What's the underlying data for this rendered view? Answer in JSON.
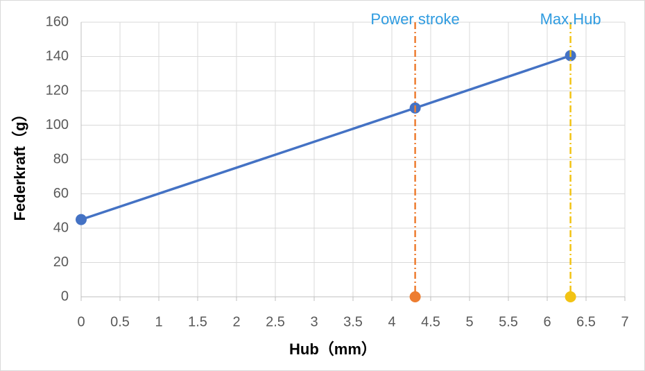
{
  "chart_data": {
    "type": "scatter",
    "x_label": "Hub（mm）",
    "y_label": "Federkraft（g）",
    "xlim": [
      0,
      7
    ],
    "xticks": [
      0,
      0.5,
      1,
      1.5,
      2,
      2.5,
      3,
      3.5,
      4,
      4.5,
      5,
      5.5,
      6,
      6.5,
      7
    ],
    "ylim": [
      0,
      160
    ],
    "yticks": [
      0,
      20,
      40,
      60,
      80,
      100,
      120,
      140,
      160
    ],
    "grid": true,
    "series": [
      {
        "color": "#4472c4",
        "x": [
          0,
          4.3,
          6.3
        ],
        "values": [
          45,
          110,
          140.5
        ],
        "line": "solid"
      },
      {
        "name": "Power stroke",
        "color": "#ed7d31",
        "x": [
          4.3
        ],
        "values": [
          0
        ],
        "line": "dashdot"
      },
      {
        "name": "Max.Hub",
        "color": "#f2c314",
        "x": [
          6.3
        ],
        "values": [
          0
        ],
        "line": "dashdot"
      }
    ]
  }
}
